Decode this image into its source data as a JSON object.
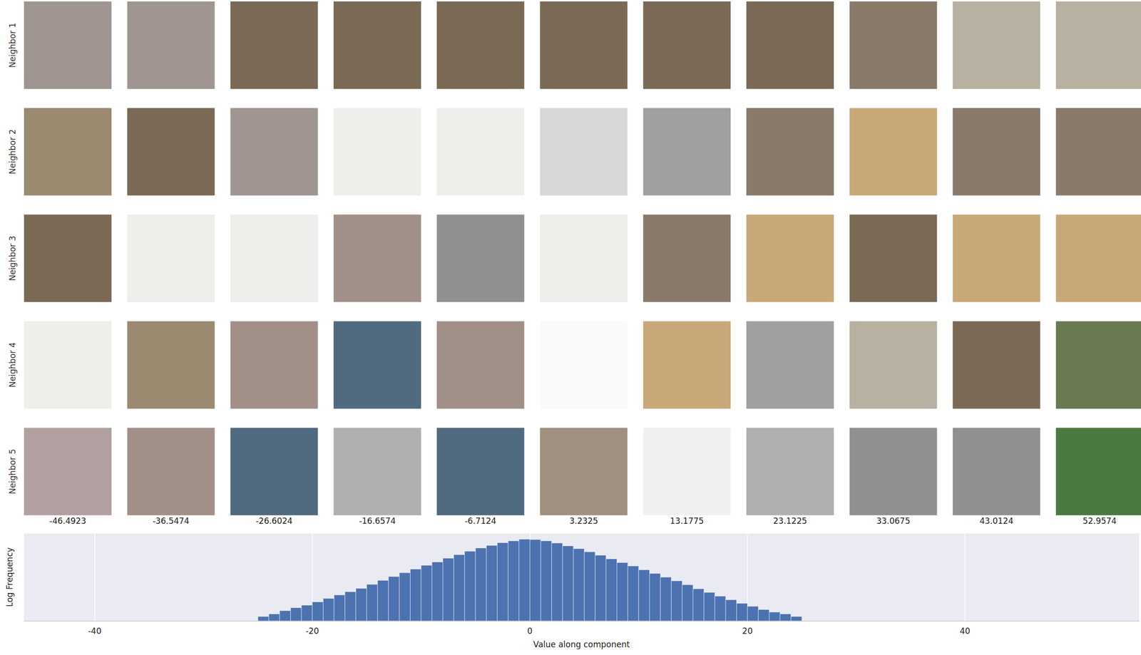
{
  "chart_data": {
    "type": "histogram",
    "xlabel": "Value along component",
    "ylabel": "Log Frequency",
    "bins": [
      -25,
      -24,
      -23,
      -22,
      -21,
      -20,
      -19,
      -18,
      -17,
      -16,
      -15,
      -14,
      -13,
      -12,
      -11,
      -10,
      -9,
      -8,
      -7,
      -6,
      -5,
      -4,
      -3,
      -2,
      -1,
      0,
      1,
      2,
      3,
      4,
      5,
      6,
      7,
      8,
      9,
      10,
      11,
      12,
      13,
      14,
      15,
      16,
      17,
      18,
      19,
      20,
      21,
      22,
      23,
      24,
      25
    ],
    "values": [
      2,
      3,
      5,
      8,
      12,
      20,
      35,
      60,
      100,
      170,
      320,
      600,
      1100,
      2000,
      3600,
      6500,
      11000,
      20000,
      35000,
      60000,
      100000,
      150000,
      230000,
      310000,
      400000,
      380000,
      310000,
      220000,
      140000,
      90000,
      55000,
      32000,
      18000,
      10000,
      5800,
      3200,
      1800,
      1000,
      560,
      300,
      160,
      90,
      50,
      28,
      16,
      10,
      6,
      4,
      3,
      2
    ],
    "color": "#4c72b0",
    "log": "y",
    "xlim": [
      -46.5,
      56
    ],
    "xticks": [
      -40,
      -20,
      0,
      20,
      40
    ],
    "ylim": [
      1,
      1000000
    ],
    "grid": true,
    "tick_labels": "x"
  },
  "image_grid": {
    "row_labels": [
      "Neighbor 1",
      "Neighbor 2",
      "Neighbor 3",
      "Neighbor 4",
      "Neighbor 5"
    ],
    "column_values": [
      -46.4923,
      -36.5474,
      -26.6024,
      -16.6574,
      -6.7124,
      3.2325,
      13.1775,
      23.1225,
      33.0675,
      43.0124,
      52.9574
    ]
  }
}
